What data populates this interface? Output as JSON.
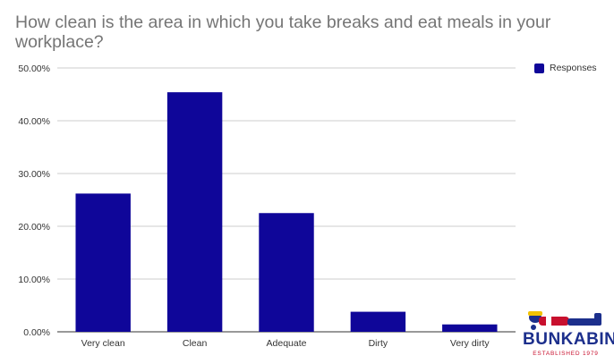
{
  "chart_data": {
    "type": "bar",
    "title": "How clean is the area in which you take breaks and eat meals in your workplace?",
    "xlabel": "",
    "ylabel": "",
    "categories": [
      "Very clean",
      "Clean",
      "Adequate",
      "Dirty",
      "Very dirty"
    ],
    "series": [
      {
        "name": "Responses",
        "values": [
          26.2,
          45.4,
          22.5,
          3.8,
          1.4
        ]
      }
    ],
    "ylim": [
      0,
      50
    ],
    "yticks": [
      0,
      10,
      20,
      30,
      40,
      50
    ],
    "ytick_labels": [
      "0.00%",
      "10.00%",
      "20.00%",
      "30.00%",
      "40.00%",
      "50.00%"
    ],
    "grid": true,
    "legend_position": "top-right",
    "bar_color": "#0f0699"
  },
  "logo": {
    "brand": "BUNKABIN",
    "tagline": "ESTABLISHED 1979"
  }
}
